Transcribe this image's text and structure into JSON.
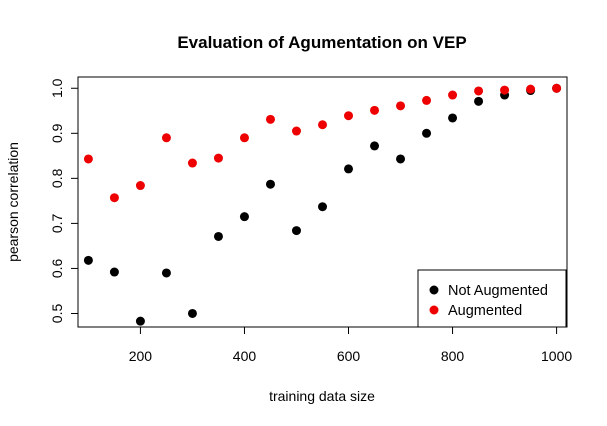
{
  "chart_data": {
    "type": "scatter",
    "title": "Evaluation of Agumentation on VEP",
    "xlabel": "training data size",
    "ylabel": "pearson correlation",
    "xlim": [
      80,
      1020
    ],
    "ylim": [
      0.47,
      1.025
    ],
    "xticks": [
      "200",
      "400",
      "600",
      "800",
      "1000"
    ],
    "yticks": [
      "0.5",
      "0.6",
      "0.7",
      "0.8",
      "0.9",
      "1.0"
    ],
    "grid": false,
    "legend_position": "bottom-right",
    "x": [
      100,
      150,
      200,
      250,
      300,
      350,
      400,
      450,
      500,
      550,
      600,
      650,
      700,
      750,
      800,
      850,
      900,
      950,
      1000
    ],
    "series": [
      {
        "name": "Not Augmented",
        "color": "#000000",
        "values": [
          0.618,
          0.592,
          0.483,
          0.59,
          0.5,
          0.671,
          0.715,
          0.787,
          0.684,
          0.737,
          0.821,
          0.872,
          0.843,
          0.9,
          0.934,
          0.971,
          0.985,
          0.995,
          1.0
        ]
      },
      {
        "name": "Augmented",
        "color": "#ee0000",
        "values": [
          0.843,
          0.757,
          0.784,
          0.89,
          0.834,
          0.845,
          0.89,
          0.931,
          0.905,
          0.919,
          0.939,
          0.951,
          0.961,
          0.973,
          0.985,
          0.994,
          0.996,
          0.998,
          1.0
        ]
      }
    ]
  }
}
